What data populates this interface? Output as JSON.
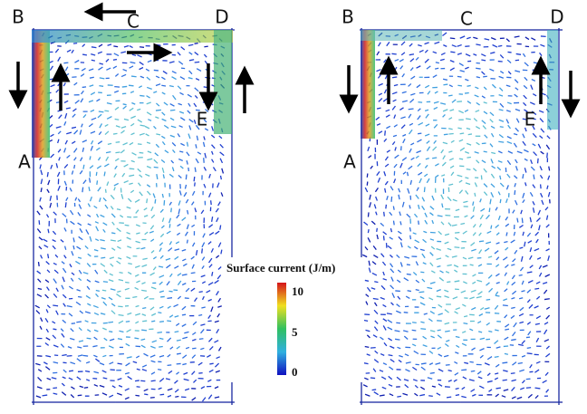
{
  "panels": [
    {
      "points": [
        "A",
        "B",
        "C",
        "D",
        "E"
      ]
    },
    {
      "points": [
        "A",
        "B",
        "C",
        "D",
        "E"
      ]
    }
  ],
  "colorbar": {
    "title": "Surface current (J/m)",
    "ticks": [
      10,
      5,
      0
    ]
  }
}
